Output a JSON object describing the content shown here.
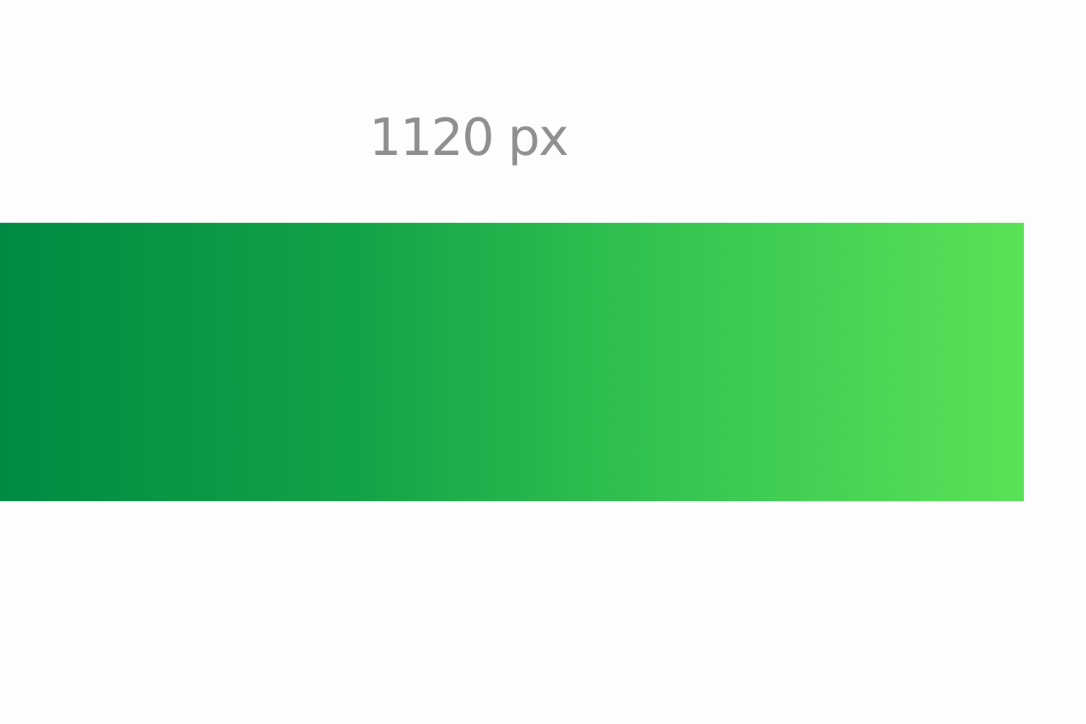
{
  "measurement": {
    "label": "1120 px"
  },
  "band": {
    "gradient_start_color": "#008a43",
    "gradient_end_color": "#5ae257"
  },
  "background_color": "#fdfdfd"
}
